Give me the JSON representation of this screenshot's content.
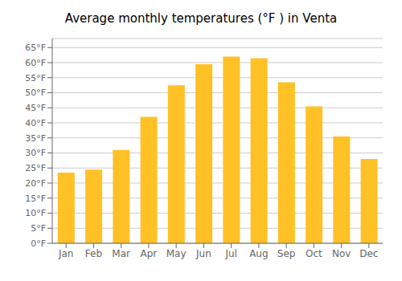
{
  "chart_data": {
    "type": "bar",
    "title": "Average monthly temperatures (°F ) in Venta",
    "categories": [
      "Jan",
      "Feb",
      "Mar",
      "Apr",
      "May",
      "Jun",
      "Jul",
      "Aug",
      "Sep",
      "Oct",
      "Nov",
      "Dec"
    ],
    "values": [
      23.5,
      24.5,
      31,
      42,
      52.5,
      59.5,
      62,
      61.5,
      53.5,
      45.5,
      35.5,
      28
    ],
    "color": "#FFC125",
    "ylim": [
      0,
      68
    ],
    "yticks": [
      {
        "value": 0,
        "label": "0°F"
      },
      {
        "value": 5,
        "label": "5°F"
      },
      {
        "value": 10,
        "label": "10°F"
      },
      {
        "value": 15,
        "label": "15°F"
      },
      {
        "value": 20,
        "label": "20°F"
      },
      {
        "value": 25,
        "label": "25°F"
      },
      {
        "value": 30,
        "label": "30°F"
      },
      {
        "value": 35,
        "label": "35°F"
      },
      {
        "value": 40,
        "label": "40°F"
      },
      {
        "value": 45,
        "label": "45°F"
      },
      {
        "value": 50,
        "label": "50°F"
      },
      {
        "value": 55,
        "label": "55°F"
      },
      {
        "value": 60,
        "label": "60°F"
      },
      {
        "value": 65,
        "label": "65°F"
      }
    ],
    "grid": true
  }
}
